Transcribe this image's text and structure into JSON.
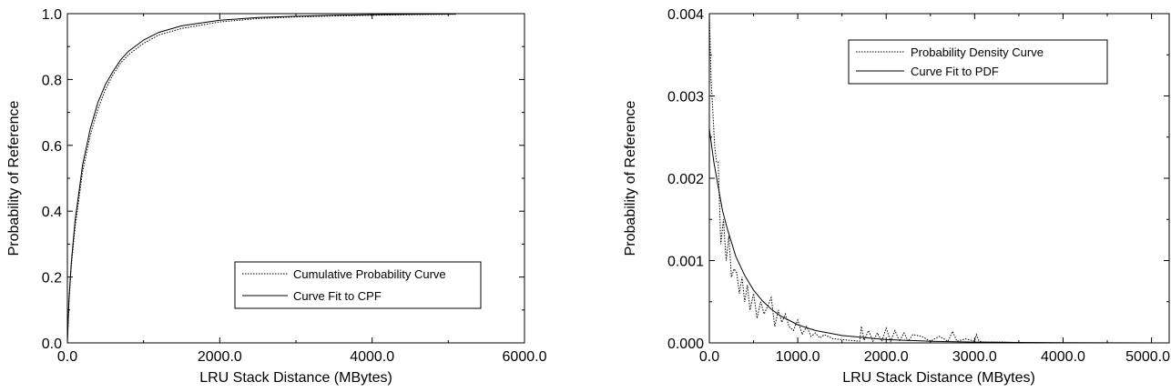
{
  "chart_data": [
    {
      "type": "line",
      "title": "",
      "xlabel": "LRU Stack Distance (MBytes)",
      "ylabel": "Probability of Reference",
      "xlim": [
        0,
        6000
      ],
      "ylim": [
        0,
        1
      ],
      "x_ticks": [
        "0.0",
        "2000.0",
        "4000.0",
        "6000.0"
      ],
      "y_ticks": [
        "0.0",
        "0.2",
        "0.4",
        "0.6",
        "0.8",
        "1.0"
      ],
      "grid": false,
      "legend_position": "bottom-right",
      "series": [
        {
          "name": "Cumulative Probability Curve",
          "style": "dotted",
          "x": [
            0,
            20,
            50,
            100,
            200,
            300,
            400,
            500,
            600,
            700,
            800,
            1000,
            1200,
            1500,
            2000,
            2500,
            3000,
            3500,
            4000,
            4500,
            5100
          ],
          "y": [
            0.0,
            0.12,
            0.23,
            0.35,
            0.52,
            0.63,
            0.71,
            0.77,
            0.815,
            0.85,
            0.875,
            0.91,
            0.935,
            0.955,
            0.975,
            0.985,
            0.99,
            0.993,
            0.995,
            0.997,
            0.998
          ]
        },
        {
          "name": "Curve Fit to CPF",
          "style": "solid",
          "x": [
            0,
            20,
            50,
            100,
            200,
            300,
            400,
            500,
            600,
            700,
            800,
            1000,
            1200,
            1500,
            2000,
            2500,
            3000,
            3500,
            4000,
            4500,
            5100
          ],
          "y": [
            0.0,
            0.13,
            0.24,
            0.37,
            0.54,
            0.65,
            0.73,
            0.785,
            0.825,
            0.86,
            0.885,
            0.92,
            0.943,
            0.963,
            0.98,
            0.988,
            0.992,
            0.995,
            0.997,
            0.998,
            0.999
          ]
        }
      ]
    },
    {
      "type": "line",
      "title": "",
      "xlabel": "LRU Stack Distance (MBytes)",
      "ylabel": "Probability of Reference",
      "xlim": [
        0,
        5200
      ],
      "ylim": [
        0,
        0.004
      ],
      "x_ticks": [
        "0.0",
        "1000.0",
        "2000.0",
        "3000.0",
        "4000.0",
        "5000.0"
      ],
      "y_ticks": [
        "0.000",
        "0.001",
        "0.002",
        "0.003",
        "0.004"
      ],
      "grid": false,
      "legend_position": "top-right",
      "series": [
        {
          "name": "Probability Density Curve",
          "style": "dotted",
          "x": [
            0,
            20,
            40,
            60,
            80,
            100,
            130,
            160,
            190,
            220,
            250,
            280,
            310,
            340,
            370,
            400,
            430,
            460,
            500,
            540,
            580,
            620,
            660,
            700,
            740,
            780,
            820,
            860,
            900,
            950,
            1000,
            1050,
            1100,
            1150,
            1200,
            1250,
            1300,
            1400,
            1500,
            1600,
            1700,
            1720,
            1750,
            1800,
            1850,
            1900,
            1950,
            2000,
            2050,
            2100,
            2150,
            2200,
            2250,
            2300,
            2400,
            2500,
            2600,
            2700,
            2750,
            2800,
            2900,
            3000,
            3020,
            3050,
            3100,
            3300,
            3600,
            4000,
            4500,
            5000
          ],
          "y": [
            0.004,
            0.0032,
            0.0028,
            0.0024,
            0.0022,
            0.0022,
            0.0012,
            0.0015,
            0.001,
            0.0013,
            0.0008,
            0.0009,
            0.00085,
            0.0006,
            0.0008,
            0.0005,
            0.0007,
            0.0004,
            0.0006,
            0.0003,
            0.0005,
            0.00035,
            0.00045,
            0.00055,
            0.0002,
            0.0004,
            0.00025,
            0.00035,
            0.0002,
            0.00015,
            0.00028,
            0.0001,
            0.0002,
            8e-05,
            0.00012,
            6e-05,
            0.0001,
            5e-05,
            4e-05,
            3e-05,
            2e-05,
            0.0002,
            3e-05,
            0.00015,
            2e-05,
            0.00012,
            2e-05,
            0.00018,
            2e-05,
            0.00015,
            2e-05,
            0.00012,
            2e-05,
            0.0001,
            8e-05,
            2e-05,
            8e-05,
            2e-05,
            0.00014,
            2e-05,
            5e-05,
            2e-05,
            0.0001,
            2e-05,
            1e-05,
            1e-05,
            0.0,
            0.0,
            0.0,
            0.0
          ]
        },
        {
          "name": "Curve Fit to PDF",
          "style": "solid",
          "x": [
            0,
            50,
            100,
            150,
            200,
            300,
            400,
            500,
            600,
            700,
            800,
            1000,
            1200,
            1500,
            2000,
            2500,
            3000,
            3500,
            4000,
            4500,
            5100
          ],
          "y": [
            0.0026,
            0.0022,
            0.0019,
            0.0016,
            0.0014,
            0.00105,
            0.00082,
            0.00064,
            0.00051,
            0.00041,
            0.00033,
            0.00022,
            0.00015,
            9e-05,
            4e-05,
            2e-05,
            1e-05,
            5e-06,
            3e-06,
            1e-06,
            0.0
          ]
        }
      ]
    }
  ]
}
